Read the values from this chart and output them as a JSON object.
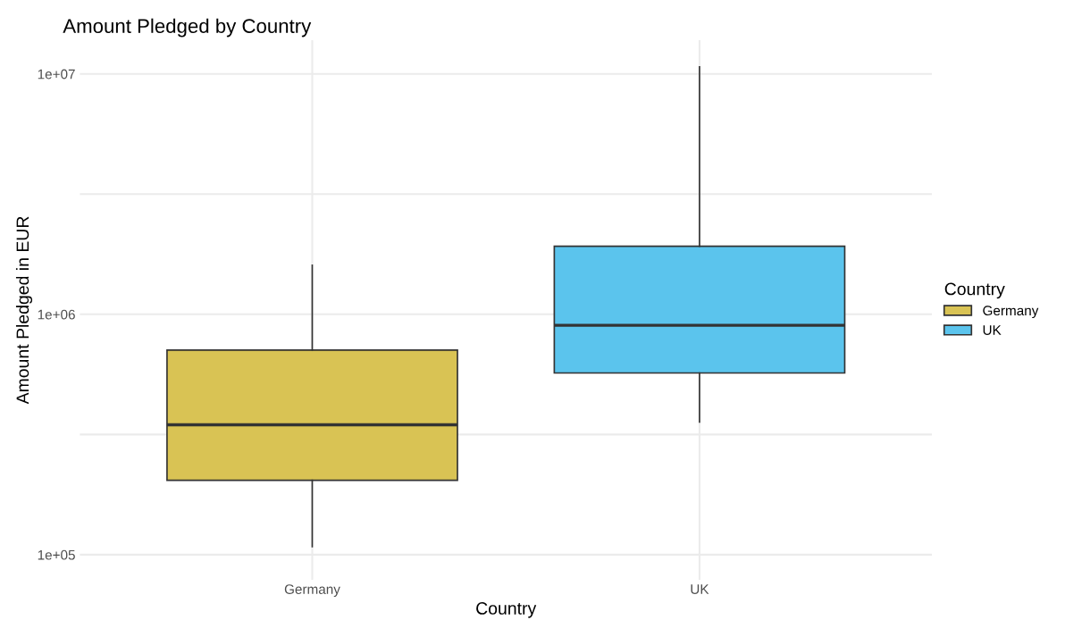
{
  "chart_data": {
    "type": "box",
    "title": "Amount Pledged by Country",
    "xlabel": "Country",
    "ylabel": "Amount Pledged in EUR",
    "legend_title": "Country",
    "categories": [
      "Germany",
      "UK"
    ],
    "series": [
      {
        "name": "Germany",
        "color": "#d9c354",
        "boxes": [
          {
            "low": 108000,
            "q1": 204000,
            "median": 347000,
            "q3": 710000,
            "high": 1600000
          },
          null
        ]
      },
      {
        "name": "UK",
        "color": "#5bc4ed",
        "boxes": [
          null,
          {
            "low": 356000,
            "q1": 570000,
            "median": 900000,
            "q3": 1920000,
            "high": 10700000
          }
        ]
      }
    ],
    "log": true,
    "ylim": [
      78700,
      13800000
    ],
    "yticks": [
      {
        "value": 100000,
        "label": "1e+05"
      },
      {
        "value": 316228,
        "label": null
      },
      {
        "value": 1000000,
        "label": "1e+06"
      },
      {
        "value": 3162278,
        "label": null
      },
      {
        "value": 10000000,
        "label": "1e+07"
      }
    ],
    "grid": true,
    "legend": "right"
  }
}
